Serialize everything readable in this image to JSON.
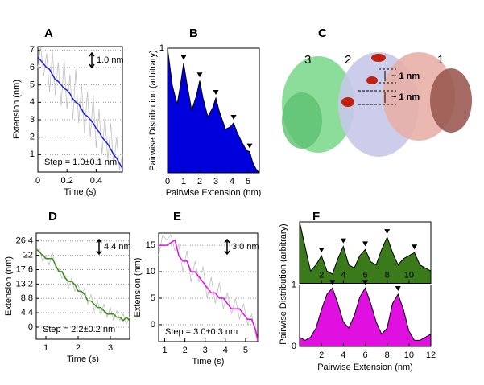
{
  "chart_data": [
    {
      "type": "line",
      "label": "A",
      "xlabel": "Time (s)",
      "ylabel": "Extension (nm)",
      "xlim": [
        0,
        0.58
      ],
      "ylim": [
        0,
        7.2
      ],
      "xticks": [
        0,
        0.2,
        0.4
      ],
      "yticks": [
        1,
        2,
        3,
        4,
        5,
        6,
        7
      ],
      "grid": true,
      "x": [
        0,
        0.02,
        0.04,
        0.06,
        0.08,
        0.1,
        0.12,
        0.14,
        0.16,
        0.18,
        0.2,
        0.22,
        0.24,
        0.26,
        0.28,
        0.3,
        0.32,
        0.34,
        0.36,
        0.38,
        0.4,
        0.42,
        0.44,
        0.46,
        0.48,
        0.5,
        0.52,
        0.54,
        0.56,
        0.58
      ],
      "series": [
        {
          "color": "#c0c0c0",
          "values": [
            6.0,
            7.2,
            5.5,
            6.8,
            4.6,
            6.9,
            4.4,
            6.3,
            3.8,
            6.5,
            3.6,
            5.6,
            3.0,
            5.9,
            2.8,
            5.0,
            2.2,
            4.6,
            2.0,
            4.4,
            1.4,
            3.6,
            1.0,
            3.2,
            0.6,
            2.8,
            0.3,
            2.0,
            0.1,
            1.0
          ]
        },
        {
          "color": "#2020e0",
          "values": [
            6.6,
            6.4,
            6.2,
            6.0,
            5.9,
            5.6,
            5.3,
            5.2,
            5.0,
            4.8,
            4.7,
            4.5,
            4.2,
            4.0,
            3.9,
            3.6,
            3.3,
            3.2,
            3.0,
            2.8,
            2.5,
            2.3,
            2.0,
            1.8,
            1.6,
            1.3,
            1.0,
            0.8,
            0.5,
            0.2
          ]
        }
      ],
      "scale_label": "1.0 nm",
      "step_label": "Step = 1.0±0.1 nm"
    },
    {
      "type": "area",
      "label": "B",
      "xlabel": "Pairwise Extension (nm)",
      "ylabel": "Pairwise Distribution (arbitrary)",
      "xlim": [
        0,
        5.7
      ],
      "ylim": [
        0,
        1
      ],
      "xticks": [
        0,
        1,
        2,
        3,
        4,
        5
      ],
      "yticks": [
        1
      ],
      "color": "#0000dd",
      "x": [
        0,
        0.1,
        0.3,
        0.6,
        0.8,
        1.0,
        1.2,
        1.5,
        1.8,
        2.0,
        2.2,
        2.5,
        2.8,
        3.0,
        3.2,
        3.6,
        3.9,
        4.1,
        4.3,
        4.6,
        4.9,
        5.1,
        5.3,
        5.5,
        5.7
      ],
      "values": [
        1,
        0.9,
        0.7,
        0.55,
        0.7,
        0.88,
        0.72,
        0.5,
        0.62,
        0.74,
        0.6,
        0.45,
        0.52,
        0.6,
        0.5,
        0.35,
        0.37,
        0.4,
        0.33,
        0.25,
        0.18,
        0.17,
        0.08,
        0.03,
        0
      ],
      "peaks": [
        1.0,
        2.0,
        3.0,
        4.1,
        5.1
      ]
    },
    {
      "type": "image",
      "label": "C",
      "domain_labels": [
        "3",
        "2",
        "1"
      ],
      "distance_labels": [
        "~ 1 nm",
        "~ 1 nm"
      ]
    },
    {
      "type": "line",
      "label": "D",
      "xlabel": "Time (s)",
      "ylabel": "Extension (nm)",
      "xlim": [
        0.7,
        3.6
      ],
      "ylim": [
        -3.7,
        28.8
      ],
      "xticks": [
        1,
        2,
        3
      ],
      "yticks": [
        0,
        4.4,
        8.8,
        13.2,
        17.6,
        22,
        26.4
      ],
      "grid": true,
      "x": [
        0.7,
        0.8,
        0.9,
        1.0,
        1.1,
        1.2,
        1.3,
        1.4,
        1.5,
        1.6,
        1.7,
        1.8,
        1.9,
        2.0,
        2.1,
        2.2,
        2.3,
        2.4,
        2.5,
        2.6,
        2.7,
        2.8,
        2.9,
        3.0,
        3.1,
        3.2,
        3.3,
        3.4,
        3.5,
        3.6
      ],
      "series": [
        {
          "color": "#c0c0c0",
          "values": [
            23,
            24,
            20,
            22,
            19,
            23,
            18,
            18,
            15,
            16,
            12,
            15,
            11,
            13,
            9,
            12,
            7,
            10,
            5,
            8,
            4,
            7,
            3,
            6,
            2,
            5,
            2,
            4,
            1,
            3
          ]
        },
        {
          "color": "#3c8c1c",
          "values": [
            24,
            23,
            22,
            21,
            21,
            21,
            19,
            17,
            17,
            15,
            14,
            14,
            13,
            11,
            11,
            10,
            8,
            8,
            7,
            6,
            6,
            5,
            4,
            4,
            4,
            3,
            3,
            2,
            3,
            2
          ]
        }
      ],
      "scale_label": "4.4 nm",
      "step_label": "Step = 2.2±0.2 nm"
    },
    {
      "type": "line",
      "label": "E",
      "xlabel": "Time (s)",
      "ylabel": "Extension (nm)",
      "xlim": [
        0.7,
        5.6
      ],
      "ylim": [
        -3.2,
        17.3
      ],
      "xticks": [
        1,
        2,
        3,
        4,
        5
      ],
      "yticks": [
        0,
        5,
        10,
        15
      ],
      "grid": true,
      "x": [
        0.7,
        0.9,
        1.1,
        1.3,
        1.5,
        1.7,
        1.9,
        2.1,
        2.3,
        2.5,
        2.7,
        2.9,
        3.1,
        3.3,
        3.5,
        3.7,
        3.9,
        4.1,
        4.3,
        4.5,
        4.7,
        4.9,
        5.1,
        5.3,
        5.5,
        5.6
      ],
      "series": [
        {
          "color": "#c0c0c0",
          "values": [
            13,
            17,
            16,
            17,
            14,
            15,
            10,
            14,
            8,
            12,
            8,
            11,
            5,
            9,
            4,
            8,
            3,
            6,
            2,
            5,
            1,
            4,
            0,
            2,
            -2,
            -3
          ]
        },
        {
          "color": "#e010e0",
          "values": [
            15,
            15,
            15,
            15.5,
            16,
            13,
            12,
            12,
            10,
            10,
            9,
            8,
            7,
            6,
            6,
            5,
            5,
            4,
            3,
            3,
            3,
            2,
            1,
            1,
            -1,
            -3
          ]
        }
      ],
      "scale_label": "3.0 nm",
      "step_label": "Step = 3.0±0.3 nm"
    },
    {
      "type": "area-panels",
      "label": "F",
      "xlabel": "Pairwise Extension (nm)",
      "ylabel": "Pairwise Distribution (arbitrary)",
      "xlim": [
        0,
        12
      ],
      "x": [
        0,
        0.5,
        1,
        1.5,
        2,
        2.5,
        3,
        3.5,
        4,
        4.5,
        5,
        5.5,
        6,
        6.5,
        7,
        7.5,
        8,
        8.5,
        9,
        9.5,
        10,
        10.5,
        11,
        11.5,
        12
      ],
      "panels": [
        {
          "color": "#3a7a1a",
          "ylim": [
            0,
            1
          ],
          "xticks": [
            2,
            4,
            6,
            8,
            10
          ],
          "yticks": [],
          "values": [
            1,
            0.6,
            0.2,
            0.3,
            0.45,
            0.2,
            0.15,
            0.4,
            0.6,
            0.3,
            0.25,
            0.45,
            0.55,
            0.35,
            0.3,
            0.55,
            0.75,
            0.5,
            0.3,
            0.4,
            0.45,
            0.5,
            0.3,
            0.25,
            0.2
          ],
          "peaks": [
            2,
            4,
            6,
            8,
            10.5
          ]
        },
        {
          "color": "#e010e0",
          "ylim": [
            0,
            1
          ],
          "xticks": [
            2,
            4,
            6,
            8,
            10,
            12
          ],
          "yticks": [
            0,
            1
          ],
          "values": [
            0.15,
            0.1,
            0.15,
            0.3,
            0.6,
            0.85,
            0.95,
            0.7,
            0.4,
            0.3,
            0.5,
            0.8,
            0.95,
            0.7,
            0.4,
            0.2,
            0.3,
            0.7,
            0.85,
            0.6,
            0.25,
            0.1,
            0.1,
            0.15,
            0.2
          ],
          "peaks": [
            3,
            6,
            9
          ]
        }
      ]
    }
  ]
}
